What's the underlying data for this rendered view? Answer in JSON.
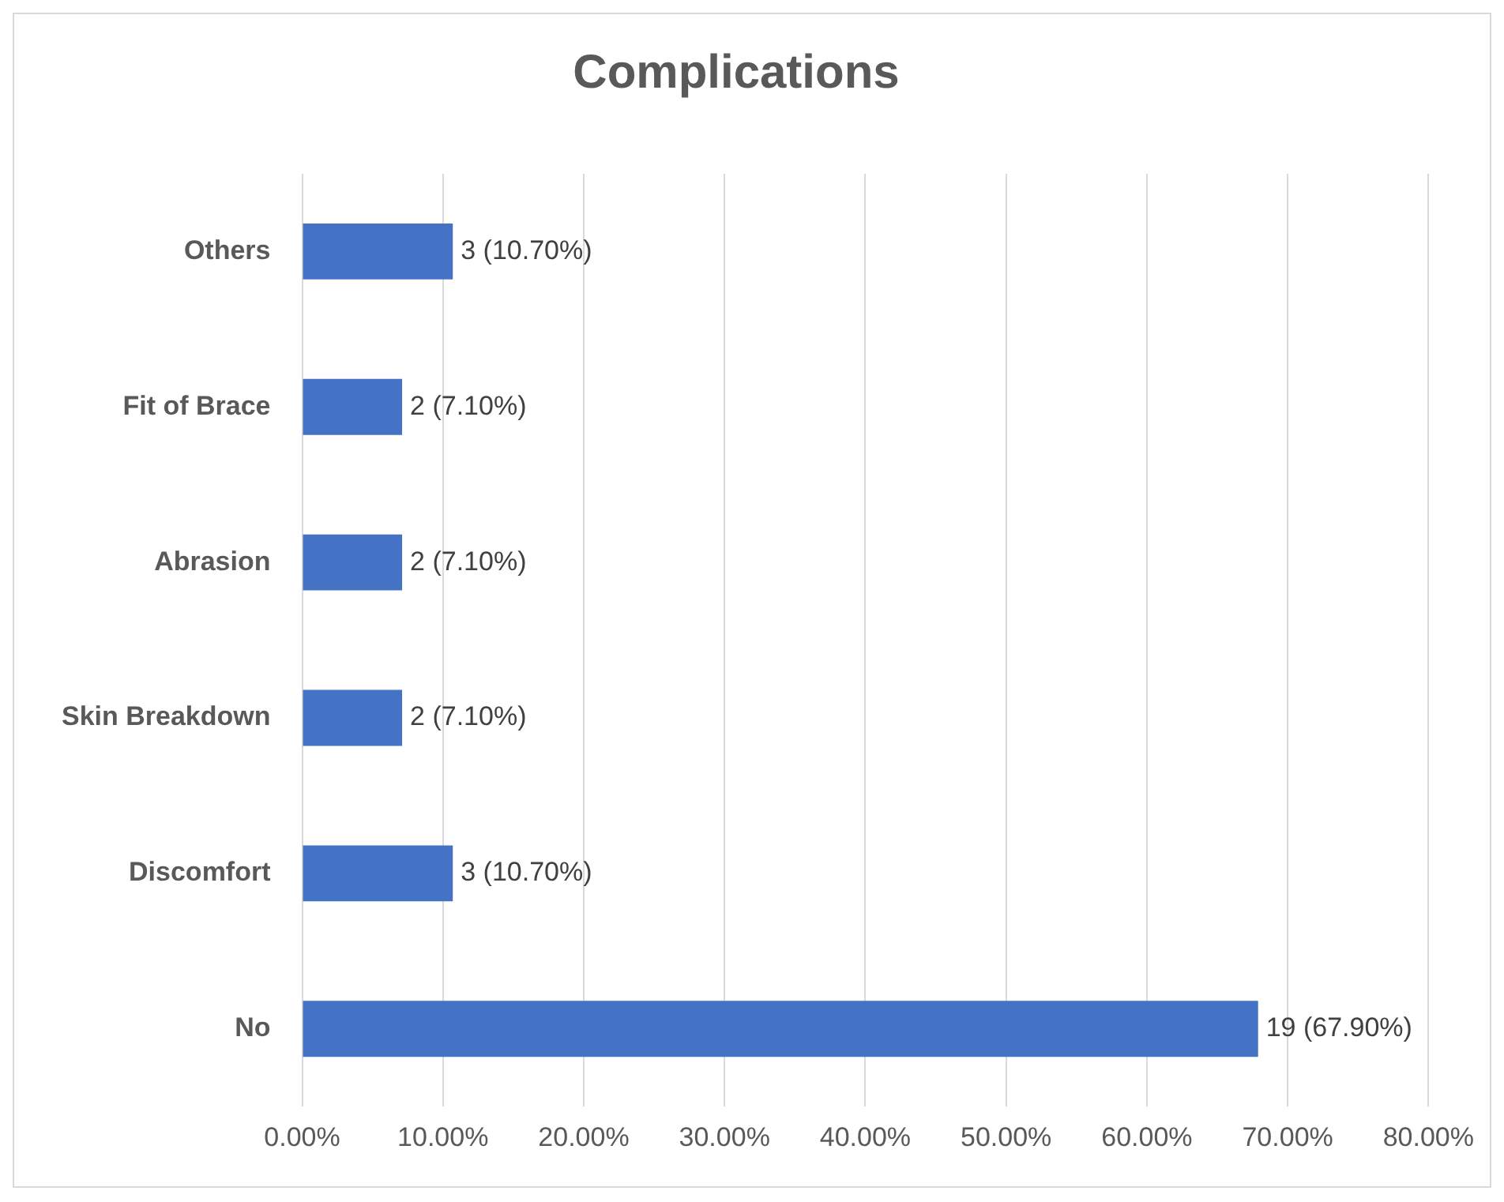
{
  "chart_data": {
    "type": "bar",
    "orientation": "horizontal",
    "title": "Complications",
    "categories": [
      "Others",
      "Fit of Brace",
      "Abrasion",
      "Skin Breakdown",
      "Discomfort",
      "No"
    ],
    "values": [
      10.7,
      7.1,
      7.1,
      7.1,
      10.7,
      67.9
    ],
    "value_labels": [
      "3 (10.70%)",
      "2 (7.10%)",
      "2 (7.10%)",
      "2 (7.10%)",
      "3 (10.70%)",
      "19 (67.90%)"
    ],
    "color": "#4472c4",
    "xlim": [
      0,
      80
    ],
    "xticks": [
      {
        "value": 0,
        "label": "0.00%"
      },
      {
        "value": 10,
        "label": "10.00%"
      },
      {
        "value": 20,
        "label": "20.00%"
      },
      {
        "value": 30,
        "label": "30.00%"
      },
      {
        "value": 40,
        "label": "40.00%"
      },
      {
        "value": 50,
        "label": "50.00%"
      },
      {
        "value": 60,
        "label": "60.00%"
      },
      {
        "value": 70,
        "label": "70.00%"
      },
      {
        "value": 80,
        "label": "80.00%"
      }
    ],
    "grid": "x",
    "legend": false
  }
}
